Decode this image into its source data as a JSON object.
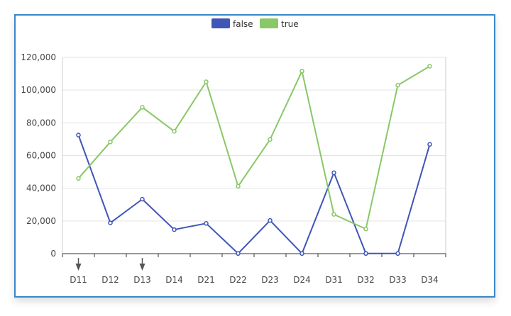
{
  "chart_data": {
    "type": "line",
    "categories": [
      "D11",
      "D12",
      "D13",
      "D14",
      "D21",
      "D22",
      "D23",
      "D24",
      "D31",
      "D32",
      "D33",
      "D34"
    ],
    "series": [
      {
        "name": "false",
        "color": "#3f56b6",
        "values": [
          72500,
          18800,
          33300,
          14700,
          18500,
          100,
          20300,
          100,
          49500,
          100,
          100,
          66800
        ]
      },
      {
        "name": "true",
        "color": "#88c866",
        "values": [
          46000,
          68300,
          89500,
          74800,
          105100,
          41200,
          69800,
          111600,
          24000,
          15100,
          103000,
          114600
        ]
      }
    ],
    "yticks": [
      "0",
      "20,000",
      "40,000",
      "60,000",
      "80,000",
      "100,000",
      "120,000"
    ],
    "ylim": [
      0,
      120000
    ],
    "grid": true,
    "legend": "top-center",
    "markers": [
      "arrow-down",
      null,
      "arrow-down",
      null,
      null,
      null,
      null,
      null,
      null,
      null,
      null,
      null
    ]
  }
}
